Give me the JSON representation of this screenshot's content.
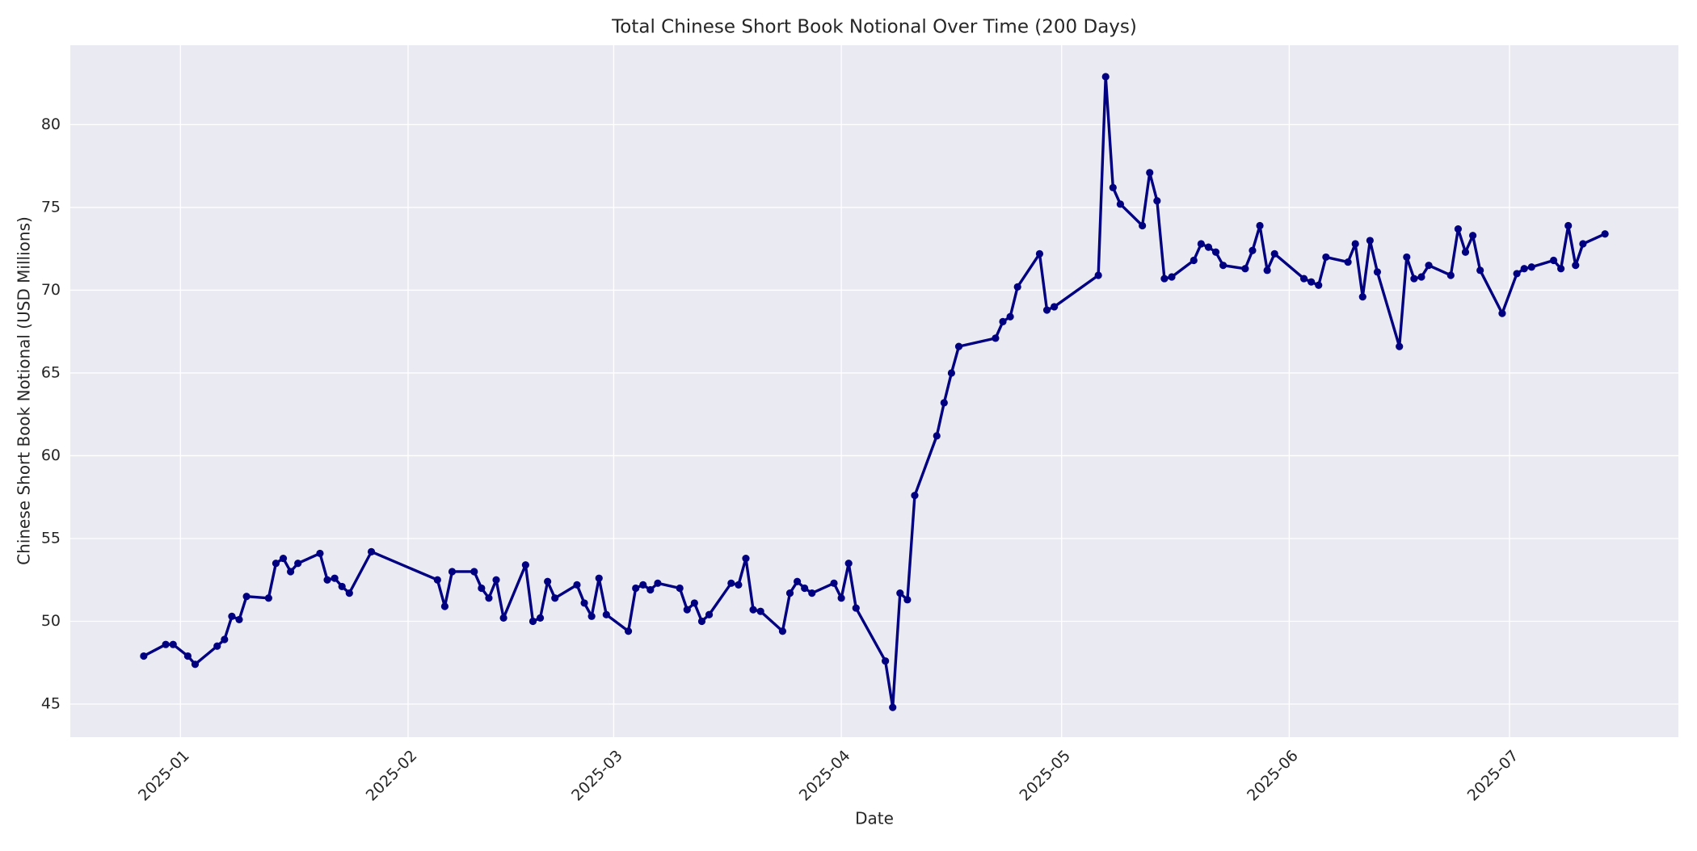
{
  "chart_data": {
    "type": "line",
    "title": "Total Chinese Short Book Notional Over Time (200 Days)",
    "x_label": "Date",
    "y_label": "Chinese Short Book Notional (USD Millions)",
    "color": "#000080",
    "grid": true,
    "x": [
      "2024-12-27",
      "2024-12-30",
      "2024-12-31",
      "2025-01-02",
      "2025-01-03",
      "2025-01-06",
      "2025-01-07",
      "2025-01-08",
      "2025-01-09",
      "2025-01-10",
      "2025-01-13",
      "2025-01-14",
      "2025-01-15",
      "2025-01-16",
      "2025-01-17",
      "2025-01-20",
      "2025-01-21",
      "2025-01-22",
      "2025-01-23",
      "2025-01-24",
      "2025-01-27",
      "2025-02-05",
      "2025-02-06",
      "2025-02-07",
      "2025-02-10",
      "2025-02-11",
      "2025-02-12",
      "2025-02-13",
      "2025-02-14",
      "2025-02-17",
      "2025-02-18",
      "2025-02-19",
      "2025-02-20",
      "2025-02-21",
      "2025-02-24",
      "2025-02-25",
      "2025-02-26",
      "2025-02-27",
      "2025-02-28",
      "2025-03-03",
      "2025-03-04",
      "2025-03-05",
      "2025-03-06",
      "2025-03-07",
      "2025-03-10",
      "2025-03-11",
      "2025-03-12",
      "2025-03-13",
      "2025-03-14",
      "2025-03-17",
      "2025-03-18",
      "2025-03-19",
      "2025-03-20",
      "2025-03-21",
      "2025-03-24",
      "2025-03-25",
      "2025-03-26",
      "2025-03-27",
      "2025-03-28",
      "2025-03-31",
      "2025-04-01",
      "2025-04-02",
      "2025-04-03",
      "2025-04-07",
      "2025-04-08",
      "2025-04-09",
      "2025-04-10",
      "2025-04-11",
      "2025-04-14",
      "2025-04-15",
      "2025-04-16",
      "2025-04-17",
      "2025-04-22",
      "2025-04-23",
      "2025-04-24",
      "2025-04-25",
      "2025-04-28",
      "2025-04-29",
      "2025-04-30",
      "2025-05-06",
      "2025-05-07",
      "2025-05-08",
      "2025-05-09",
      "2025-05-12",
      "2025-05-13",
      "2025-05-14",
      "2025-05-15",
      "2025-05-16",
      "2025-05-19",
      "2025-05-20",
      "2025-05-21",
      "2025-05-22",
      "2025-05-23",
      "2025-05-26",
      "2025-05-27",
      "2025-05-28",
      "2025-05-29",
      "2025-05-30",
      "2025-06-03",
      "2025-06-04",
      "2025-06-05",
      "2025-06-06",
      "2025-06-09",
      "2025-06-10",
      "2025-06-11",
      "2025-06-12",
      "2025-06-13",
      "2025-06-16",
      "2025-06-17",
      "2025-06-18",
      "2025-06-19",
      "2025-06-20",
      "2025-06-23",
      "2025-06-24",
      "2025-06-25",
      "2025-06-26",
      "2025-06-27",
      "2025-06-30",
      "2025-07-02",
      "2025-07-03",
      "2025-07-04",
      "2025-07-07",
      "2025-07-08",
      "2025-07-09",
      "2025-07-10",
      "2025-07-11",
      "2025-07-14"
    ],
    "values": [
      47.9,
      48.6,
      48.6,
      47.9,
      47.4,
      48.5,
      48.9,
      50.3,
      50.1,
      51.5,
      51.4,
      53.5,
      53.8,
      53.0,
      53.5,
      54.1,
      52.5,
      52.6,
      52.1,
      51.7,
      54.2,
      52.5,
      50.9,
      53.0,
      53.0,
      52.0,
      51.4,
      52.5,
      50.2,
      53.4,
      50.0,
      50.2,
      52.4,
      51.4,
      52.2,
      51.1,
      50.3,
      52.6,
      50.4,
      49.4,
      52.0,
      52.2,
      51.9,
      52.3,
      52.0,
      50.7,
      51.1,
      50.0,
      50.4,
      52.3,
      52.2,
      53.8,
      50.7,
      50.6,
      49.4,
      51.7,
      52.4,
      52.0,
      51.7,
      52.3,
      51.4,
      53.5,
      50.8,
      47.6,
      44.8,
      51.7,
      51.3,
      57.6,
      61.2,
      63.2,
      65.0,
      66.6,
      67.1,
      68.1,
      68.4,
      70.2,
      72.2,
      68.8,
      69.0,
      70.9,
      82.9,
      76.2,
      75.2,
      73.9,
      77.1,
      75.4,
      70.7,
      70.8,
      71.8,
      72.8,
      72.6,
      72.3,
      71.5,
      71.3,
      72.4,
      73.9,
      71.2,
      72.2,
      70.7,
      70.5,
      70.3,
      72.0,
      71.7,
      72.8,
      69.6,
      73.0,
      71.1,
      66.6,
      72.0,
      70.7,
      70.8,
      71.5,
      70.9,
      73.7,
      72.3,
      73.3,
      71.2,
      68.6,
      71.0,
      71.3,
      71.4,
      71.8,
      71.3,
      73.9,
      71.5,
      72.8,
      73.4
    ],
    "xlim": [
      "2024-12-17",
      "2025-07-24"
    ],
    "xticks": [
      {
        "value": "2025-01-01",
        "label": "2025-01"
      },
      {
        "value": "2025-02-01",
        "label": "2025-02"
      },
      {
        "value": "2025-03-01",
        "label": "2025-03"
      },
      {
        "value": "2025-04-01",
        "label": "2025-04"
      },
      {
        "value": "2025-05-01",
        "label": "2025-05"
      },
      {
        "value": "2025-06-01",
        "label": "2025-06"
      },
      {
        "value": "2025-07-01",
        "label": "2025-07"
      }
    ],
    "ylim": [
      43.0,
      84.8
    ],
    "yticks": [
      45,
      50,
      55,
      60,
      65,
      70,
      75,
      80
    ]
  }
}
